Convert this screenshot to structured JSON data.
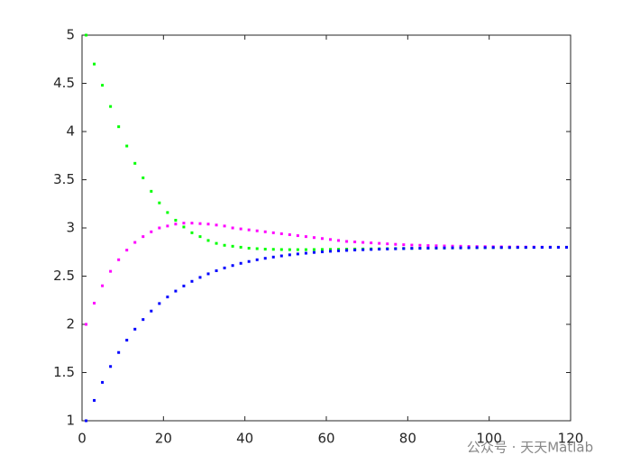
{
  "chart_data": {
    "type": "scatter",
    "x": [
      1,
      3,
      5,
      7,
      9,
      11,
      13,
      15,
      17,
      19,
      21,
      23,
      25,
      27,
      29,
      31,
      33,
      35,
      37,
      39,
      41,
      43,
      45,
      47,
      49,
      51,
      53,
      55,
      57,
      59,
      61,
      63,
      65,
      67,
      69,
      71,
      73,
      75,
      77,
      79,
      81,
      83,
      85,
      87,
      89,
      91,
      93,
      95,
      97,
      99,
      101,
      103,
      105,
      107,
      109,
      111,
      113,
      115,
      117,
      119
    ],
    "series": [
      {
        "color": "#00ff00",
        "values": [
          5,
          4.7,
          4.48,
          4.26,
          4.05,
          3.85,
          3.67,
          3.52,
          3.38,
          3.26,
          3.16,
          3.08,
          3.01,
          2.95,
          2.91,
          2.87,
          2.84,
          2.82,
          2.81,
          2.8,
          2.79,
          2.785,
          2.78,
          2.778,
          2.776,
          2.775,
          2.775,
          2.775,
          2.776,
          2.777,
          2.778,
          2.779,
          2.78,
          2.781,
          2.782,
          2.783,
          2.784,
          2.785,
          2.786,
          2.787,
          2.788,
          2.789,
          2.79,
          2.79,
          2.791,
          2.792,
          2.793,
          2.794,
          2.795,
          2.795,
          2.796,
          2.797,
          2.797,
          2.798,
          2.798,
          2.799,
          2.799,
          2.8,
          2.8,
          2.8
        ]
      },
      {
        "color": "#ff00ff",
        "values": [
          2,
          2.22,
          2.4,
          2.55,
          2.67,
          2.77,
          2.85,
          2.91,
          2.96,
          3.0,
          3.02,
          3.04,
          3.05,
          3.05,
          3.045,
          3.04,
          3.03,
          3.02,
          3.0,
          2.99,
          2.98,
          2.97,
          2.96,
          2.95,
          2.94,
          2.93,
          2.92,
          2.91,
          2.9,
          2.89,
          2.88,
          2.87,
          2.86,
          2.855,
          2.85,
          2.845,
          2.84,
          2.835,
          2.83,
          2.826,
          2.822,
          2.82,
          2.817,
          2.815,
          2.813,
          2.811,
          2.81,
          2.808,
          2.807,
          2.806,
          2.805,
          2.804,
          2.803,
          2.803,
          2.802,
          2.802,
          2.801,
          2.801,
          2.8,
          2.8
        ]
      },
      {
        "color": "#0000ff",
        "values": [
          1.0,
          1.211,
          1.398,
          1.563,
          1.708,
          1.836,
          1.95,
          2.05,
          2.138,
          2.216,
          2.284,
          2.345,
          2.398,
          2.446,
          2.487,
          2.524,
          2.556,
          2.585,
          2.61,
          2.633,
          2.652,
          2.67,
          2.685,
          2.698,
          2.71,
          2.721,
          2.73,
          2.738,
          2.746,
          2.752,
          2.758,
          2.763,
          2.767,
          2.771,
          2.774,
          2.777,
          2.78,
          2.782,
          2.784,
          2.786,
          2.788,
          2.789,
          2.791,
          2.792,
          2.793,
          2.794,
          2.794,
          2.795,
          2.796,
          2.796,
          2.797,
          2.797,
          2.797,
          2.798,
          2.798,
          2.798,
          2.799,
          2.799,
          2.799,
          2.799
        ]
      }
    ],
    "xlim": [
      0,
      120
    ],
    "xticks": [
      0,
      20,
      40,
      60,
      80,
      100,
      120
    ],
    "ylim": [
      1,
      5
    ],
    "yticks": [
      1,
      1.5,
      2,
      2.5,
      3,
      3.5,
      4,
      4.5,
      5
    ],
    "watermark": "公众号 · 天天Matlab"
  }
}
